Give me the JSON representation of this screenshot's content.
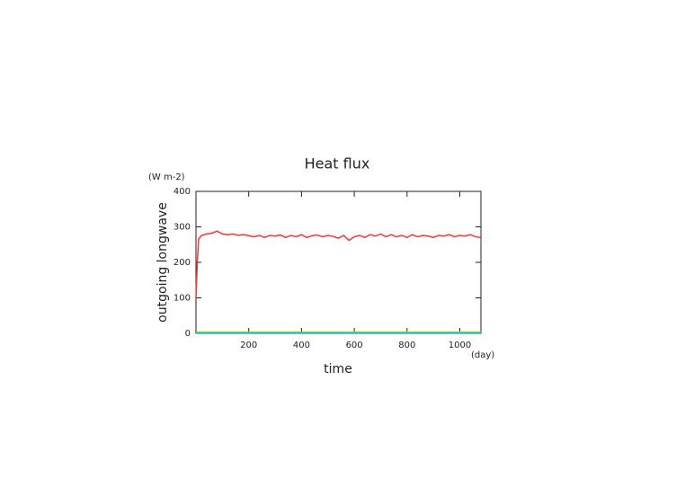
{
  "chart_data": {
    "type": "line",
    "title": "Heat flux",
    "ylabel": "outgoing longwave",
    "yunit": "(W m-2)",
    "xlabel": "time",
    "xunit": "(day)",
    "x": [
      0,
      5,
      10,
      20,
      40,
      60,
      80,
      100,
      120,
      140,
      160,
      180,
      200,
      220,
      240,
      260,
      280,
      300,
      320,
      340,
      360,
      380,
      400,
      420,
      440,
      460,
      480,
      500,
      520,
      540,
      560,
      580,
      600,
      620,
      640,
      660,
      680,
      700,
      720,
      740,
      760,
      780,
      800,
      820,
      840,
      860,
      880,
      900,
      920,
      940,
      960,
      980,
      1000,
      1020,
      1040,
      1060,
      1080
    ],
    "series": [
      {
        "color": "#ff3333",
        "values": [
          100,
          200,
          265,
          275,
          280,
          282,
          288,
          280,
          278,
          280,
          276,
          278,
          275,
          272,
          276,
          270,
          276,
          274,
          277,
          270,
          276,
          272,
          278,
          270,
          275,
          277,
          272,
          276,
          273,
          268,
          276,
          262,
          272,
          276,
          270,
          278,
          274,
          280,
          272,
          278,
          272,
          276,
          270,
          278,
          272,
          276,
          274,
          270,
          276,
          274,
          278,
          272,
          276,
          274,
          278,
          272,
          270
        ]
      },
      {
        "color": "#ffa500",
        "values": [
          3,
          3,
          3,
          3,
          3,
          3,
          3,
          3,
          3,
          3,
          3,
          3,
          3,
          3,
          3,
          3,
          3,
          3,
          3,
          3,
          3,
          3,
          3,
          3,
          3,
          3,
          3,
          3,
          3,
          3,
          3,
          3,
          3,
          3,
          3,
          3,
          3,
          3,
          3,
          3,
          3,
          3,
          3,
          3,
          3,
          3,
          3,
          3,
          3,
          3,
          3,
          3,
          3,
          3,
          3,
          3,
          3
        ]
      },
      {
        "color": "#33cc33",
        "values": [
          1,
          1,
          1,
          1,
          1,
          1,
          1,
          1,
          1,
          1,
          1,
          1,
          1,
          1,
          1,
          1,
          1,
          1,
          1,
          1,
          1,
          1,
          1,
          1,
          1,
          1,
          1,
          1,
          1,
          1,
          1,
          1,
          1,
          1,
          1,
          1,
          1,
          1,
          1,
          1,
          1,
          1,
          1,
          1,
          1,
          1,
          1,
          1,
          1,
          1,
          1,
          1,
          1,
          1,
          1,
          1,
          1
        ]
      },
      {
        "color": "#00ccdd",
        "values": [
          0,
          0,
          0,
          0,
          0,
          0,
          0,
          0,
          0,
          0,
          0,
          0,
          0,
          0,
          0,
          0,
          0,
          0,
          0,
          0,
          0,
          0,
          0,
          0,
          0,
          0,
          0,
          0,
          0,
          0,
          0,
          0,
          0,
          0,
          0,
          0,
          0,
          0,
          0,
          0,
          0,
          0,
          0,
          0,
          0,
          0,
          0,
          0,
          0,
          0,
          0,
          0,
          0,
          0,
          0,
          0,
          0
        ]
      }
    ],
    "xlim": [
      0,
      1080
    ],
    "ylim": [
      0,
      400
    ],
    "xticks": [
      200,
      400,
      600,
      800,
      1000
    ],
    "yticks": [
      0,
      100,
      200,
      300,
      400
    ]
  }
}
